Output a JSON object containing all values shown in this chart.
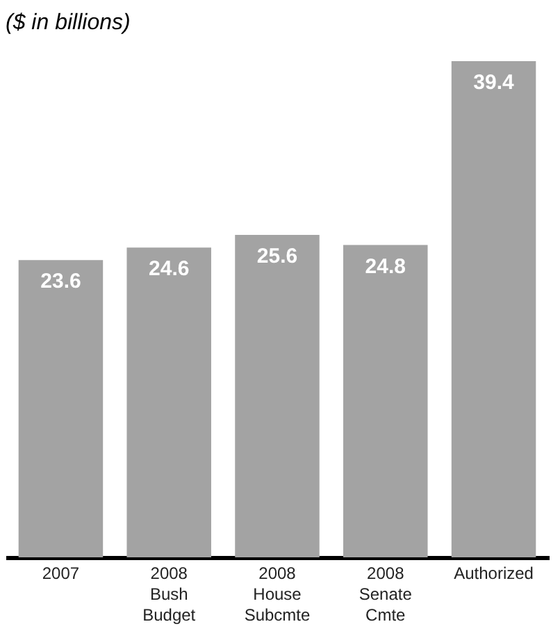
{
  "chart_data": {
    "type": "bar",
    "ylabel": "($ in billions)",
    "categories": [
      "2007",
      "2008 Bush Budget",
      "2008 House Subcmte",
      "2008 Senate Cmte",
      "Authorized"
    ],
    "values": [
      23.6,
      24.6,
      25.6,
      24.8,
      39.4
    ],
    "color": "#a3a3a3",
    "data_labels": true
  }
}
